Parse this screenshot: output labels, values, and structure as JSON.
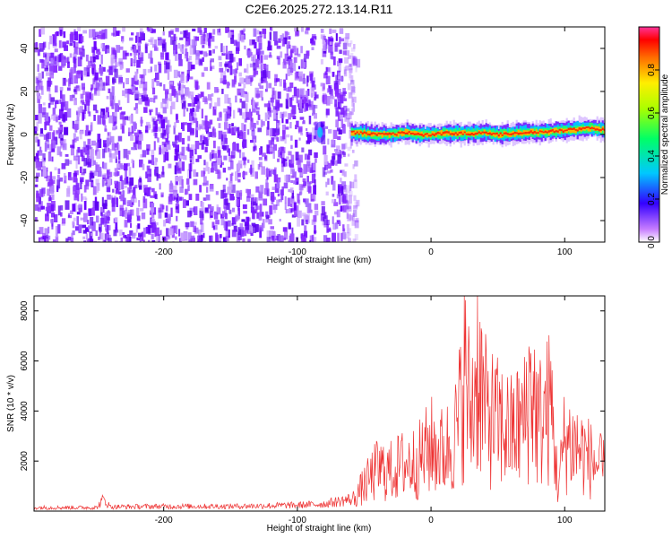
{
  "title": "C2E6.2025.272.13.14.R11",
  "chart_data": [
    {
      "type": "heatmap",
      "title": "C2E6.2025.272.13.14.R11",
      "xlabel": "Height of straight line (km)",
      "ylabel": "Frequency (Hz)",
      "xlim": [
        -297,
        130
      ],
      "ylim": [
        -50,
        50
      ],
      "xticks": [
        -200,
        -100,
        0,
        100
      ],
      "yticks": [
        -40,
        -20,
        0,
        20,
        40
      ],
      "xtick_labels": [
        "-200",
        "-100",
        "0",
        "100"
      ],
      "ytick_labels": [
        "-40",
        "-20",
        "0",
        "20",
        "40"
      ],
      "noise_region_x": [
        -297,
        -60
      ],
      "dropout_x": -85,
      "signal_track": {
        "x": [
          -60,
          -50,
          -40,
          -30,
          -20,
          -10,
          0,
          10,
          20,
          30,
          40,
          50,
          60,
          70,
          80,
          90,
          100,
          110,
          120,
          130
        ],
        "frequency": [
          1,
          0.5,
          0,
          0,
          1,
          0,
          0,
          0.5,
          0.5,
          0.5,
          1,
          0,
          0.5,
          1,
          1,
          1.5,
          2,
          2.5,
          3,
          2
        ]
      },
      "colorbar": {
        "label": "Normalized spectral amplitude",
        "range": [
          0,
          1
        ],
        "ticks": [
          0.0,
          0.2,
          0.4,
          0.6,
          0.8
        ],
        "tick_labels": [
          "0.0",
          "0.2",
          "0.4",
          "0.6",
          "0.8"
        ]
      }
    },
    {
      "type": "line",
      "xlabel": "Height of straight line (km)",
      "ylabel": "SNR (10 * v/v)",
      "xlim": [
        -297,
        130
      ],
      "ylim": [
        0,
        8600
      ],
      "xticks": [
        -200,
        -100,
        0,
        100
      ],
      "yticks": [
        2000,
        4000,
        6000,
        8000
      ],
      "xtick_labels": [
        "-200",
        "-100",
        "0",
        "100"
      ],
      "ytick_labels": [
        "2000",
        "4000",
        "6000",
        "8000"
      ],
      "color": "#ee3333",
      "series": [
        {
          "name": "SNR",
          "x": [
            -297,
            -250,
            -245,
            -240,
            -200,
            -150,
            -100,
            -80,
            -60,
            -50,
            -40,
            -30,
            -20,
            -10,
            0,
            10,
            20,
            25,
            30,
            35,
            40,
            50,
            60,
            70,
            75,
            80,
            90,
            95,
            100,
            110,
            120,
            130
          ],
          "values": [
            150,
            150,
            500,
            180,
            200,
            200,
            250,
            300,
            500,
            1400,
            2300,
            2200,
            2600,
            2700,
            3600,
            3200,
            4500,
            7600,
            5200,
            8300,
            5500,
            4800,
            4300,
            5000,
            7200,
            4800,
            5800,
            1200,
            4000,
            3500,
            2800,
            2200
          ]
        }
      ]
    }
  ]
}
